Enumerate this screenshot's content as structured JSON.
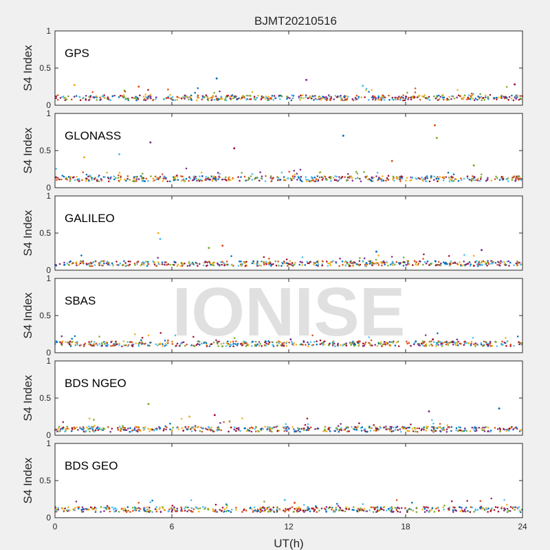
{
  "chart_data": {
    "type": "scatter",
    "title": "BJMT20210516",
    "xlabel": "UT(h)",
    "ylabel": "S4 Index",
    "xlim": [
      0,
      24
    ],
    "ylim": [
      0,
      1
    ],
    "xticks": [
      "0",
      "6",
      "12",
      "18",
      "24"
    ],
    "yticks": [
      "0",
      "0.5",
      "1"
    ],
    "grid": false,
    "watermark": "IONISE",
    "colors": [
      "#0072BD",
      "#D95319",
      "#EDB120",
      "#7E2F8E",
      "#77AC30",
      "#4DBEEE",
      "#A2142F"
    ],
    "panels": [
      {
        "name": "GPS",
        "baseline": 0.1,
        "spikes": [
          [
            8.3,
            0.36
          ],
          [
            12.9,
            0.34
          ],
          [
            23.6,
            0.28
          ],
          [
            1.0,
            0.27
          ],
          [
            15.8,
            0.26
          ],
          [
            4.3,
            0.25
          ]
        ]
      },
      {
        "name": "GLONASS",
        "baseline": 0.12,
        "spikes": [
          [
            19.5,
            0.84
          ],
          [
            19.6,
            0.67
          ],
          [
            14.8,
            0.7
          ],
          [
            4.9,
            0.61
          ],
          [
            9.2,
            0.53
          ],
          [
            1.5,
            0.41
          ],
          [
            3.3,
            0.45
          ],
          [
            17.3,
            0.36
          ],
          [
            21.5,
            0.3
          ]
        ]
      },
      {
        "name": "GALILEO",
        "baseline": 0.09,
        "spikes": [
          [
            5.3,
            0.5
          ],
          [
            5.4,
            0.42
          ],
          [
            8.6,
            0.33
          ],
          [
            7.9,
            0.3
          ],
          [
            16.5,
            0.25
          ],
          [
            21.9,
            0.27
          ]
        ]
      },
      {
        "name": "SBAS",
        "baseline": 0.12,
        "spikes": [
          [
            12.1,
            0.18
          ],
          [
            19.4,
            0.18
          ]
        ]
      },
      {
        "name": "BDS NGEO",
        "baseline": 0.08,
        "spikes": [
          [
            4.8,
            0.42
          ],
          [
            22.8,
            0.36
          ],
          [
            19.2,
            0.32
          ],
          [
            8.2,
            0.27
          ],
          [
            6.9,
            0.25
          ]
        ]
      },
      {
        "name": "BDS GEO",
        "baseline": 0.11,
        "spikes": [
          [
            11.8,
            0.24
          ],
          [
            12.3,
            0.2
          ]
        ]
      }
    ]
  }
}
